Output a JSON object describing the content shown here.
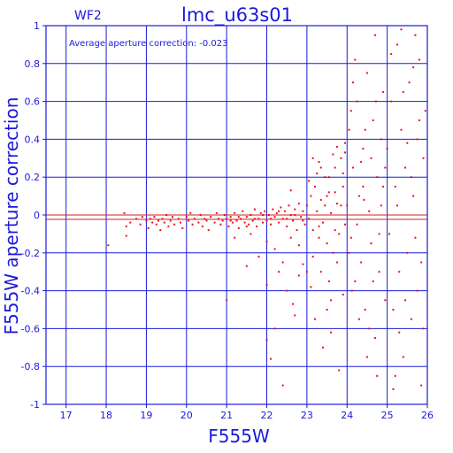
{
  "chart_data": {
    "type": "scatter",
    "panel_label": "WF2",
    "title": "lmc_u63s01",
    "xlabel": "F555W",
    "ylabel": "F555W aperture correction",
    "annotation": "Average aperture correction: -0.023",
    "xlim": [
      16.5,
      26
    ],
    "ylim": [
      -1,
      1
    ],
    "xticks": [
      17,
      18,
      19,
      20,
      21,
      22,
      23,
      24,
      25,
      26
    ],
    "yticks": [
      -1,
      -0.8,
      -0.6,
      -0.4,
      -0.2,
      0,
      0.2,
      0.4,
      0.6,
      0.8,
      1
    ],
    "ytick_labels": [
      "-1",
      "-0.8",
      "-0.6",
      "-0.4",
      "-0.2",
      "0",
      "0.2",
      "0.4",
      "0.6",
      "0.8",
      "1"
    ],
    "grid": true,
    "reference_lines": [
      -0.023,
      0
    ],
    "colors": {
      "axes": "#1a1adb",
      "points": "#e8101a",
      "reference": "#cc2222"
    },
    "series": [
      {
        "points": [
          [
            18.05,
            -0.16
          ],
          [
            18.45,
            0.01
          ],
          [
            18.5,
            -0.06
          ],
          [
            18.5,
            -0.11
          ],
          [
            18.6,
            -0.04
          ],
          [
            18.75,
            -0.02
          ],
          [
            18.85,
            -0.05
          ],
          [
            18.9,
            -0.01
          ],
          [
            19.0,
            -0.03
          ],
          [
            19.05,
            -0.07
          ],
          [
            19.1,
            -0.02
          ],
          [
            19.15,
            -0.04
          ],
          [
            19.2,
            -0.01
          ],
          [
            19.25,
            -0.05
          ],
          [
            19.3,
            -0.03
          ],
          [
            19.35,
            -0.08
          ],
          [
            19.4,
            -0.02
          ],
          [
            19.45,
            -0.04
          ],
          [
            19.5,
            0.0
          ],
          [
            19.55,
            -0.06
          ],
          [
            19.6,
            -0.03
          ],
          [
            19.65,
            -0.01
          ],
          [
            19.7,
            -0.05
          ],
          [
            19.8,
            -0.02
          ],
          [
            19.85,
            -0.04
          ],
          [
            19.9,
            -0.07
          ],
          [
            20.0,
            -0.01
          ],
          [
            20.05,
            -0.03
          ],
          [
            20.1,
            0.01
          ],
          [
            20.15,
            -0.05
          ],
          [
            20.2,
            -0.02
          ],
          [
            20.3,
            -0.04
          ],
          [
            20.35,
            0.0
          ],
          [
            20.4,
            -0.06
          ],
          [
            20.45,
            -0.02
          ],
          [
            20.5,
            -0.03
          ],
          [
            20.55,
            -0.08
          ],
          [
            20.6,
            -0.01
          ],
          [
            20.7,
            -0.04
          ],
          [
            20.75,
            0.01
          ],
          [
            20.8,
            -0.02
          ],
          [
            20.85,
            -0.05
          ],
          [
            20.9,
            -0.03
          ],
          [
            20.95,
            0.0
          ],
          [
            21.0,
            -0.02
          ],
          [
            21.05,
            -0.06
          ],
          [
            21.1,
            -0.01
          ],
          [
            21.15,
            -0.04
          ],
          [
            21.2,
            0.01
          ],
          [
            21.25,
            -0.03
          ],
          [
            21.3,
            -0.07
          ],
          [
            21.35,
            -0.02
          ],
          [
            21.4,
            0.02
          ],
          [
            21.45,
            -0.04
          ],
          [
            21.5,
            -0.01
          ],
          [
            21.55,
            -0.05
          ],
          [
            21.6,
            0.0
          ],
          [
            21.65,
            -0.03
          ],
          [
            21.7,
            0.03
          ],
          [
            21.75,
            -0.06
          ],
          [
            21.8,
            -0.02
          ],
          [
            21.85,
            0.01
          ],
          [
            21.9,
            -0.04
          ],
          [
            21.95,
            0.02
          ],
          [
            22.0,
            -0.03
          ],
          [
            22.05,
            0.0
          ],
          [
            22.1,
            -0.05
          ],
          [
            22.15,
            0.03
          ],
          [
            22.2,
            -0.01
          ],
          [
            22.25,
            0.01
          ],
          [
            22.3,
            -0.04
          ],
          [
            22.35,
            0.04
          ],
          [
            22.4,
            -0.02
          ],
          [
            22.45,
            0.02
          ],
          [
            22.5,
            -0.06
          ],
          [
            22.55,
            0.05
          ],
          [
            22.6,
            0.0
          ],
          [
            22.65,
            -0.03
          ],
          [
            22.7,
            0.03
          ],
          [
            22.75,
            -0.08
          ],
          [
            22.8,
            0.06
          ],
          [
            22.85,
            -0.01
          ],
          [
            22.9,
            0.02
          ],
          [
            22.95,
            -0.05
          ],
          [
            21.1,
            -0.03
          ],
          [
            21.3,
            -0.01
          ],
          [
            21.5,
            -0.06
          ],
          [
            21.7,
            -0.02
          ],
          [
            21.9,
            0.0
          ],
          [
            22.1,
            -0.02
          ],
          [
            22.3,
            0.02
          ],
          [
            22.5,
            -0.02
          ],
          [
            22.7,
            0.0
          ],
          [
            22.9,
            -0.03
          ],
          [
            21.2,
            -0.12
          ],
          [
            21.6,
            -0.1
          ],
          [
            22.0,
            -0.14
          ],
          [
            22.2,
            -0.18
          ],
          [
            22.4,
            -0.25
          ],
          [
            22.6,
            -0.12
          ],
          [
            21.8,
            -0.22
          ],
          [
            22.8,
            -0.16
          ],
          [
            21.0,
            -0.45
          ],
          [
            21.5,
            -0.27
          ],
          [
            22.0,
            -0.37
          ],
          [
            22.2,
            -0.6
          ],
          [
            22.3,
            -0.3
          ],
          [
            22.5,
            -0.4
          ],
          [
            22.7,
            -0.53
          ],
          [
            22.8,
            -0.32
          ],
          [
            22.0,
            -0.66
          ],
          [
            22.4,
            -0.9
          ],
          [
            22.1,
            -0.76
          ],
          [
            22.6,
            0.13
          ],
          [
            22.9,
            -0.26
          ],
          [
            22.65,
            -0.47
          ],
          [
            23.0,
            0.05
          ],
          [
            23.05,
            -0.02
          ],
          [
            23.1,
            0.1
          ],
          [
            23.15,
            -0.08
          ],
          [
            23.2,
            0.15
          ],
          [
            23.25,
            0.02
          ],
          [
            23.3,
            -0.12
          ],
          [
            23.35,
            0.08
          ],
          [
            23.4,
            -0.04
          ],
          [
            23.45,
            0.2
          ],
          [
            23.5,
            -0.15
          ],
          [
            23.55,
            0.12
          ],
          [
            23.6,
            0.01
          ],
          [
            23.65,
            -0.2
          ],
          [
            23.7,
            0.25
          ],
          [
            23.75,
            0.06
          ],
          [
            23.8,
            -0.1
          ],
          [
            23.85,
            0.3
          ],
          [
            23.9,
            0.15
          ],
          [
            23.95,
            -0.05
          ],
          [
            23.05,
            0.18
          ],
          [
            23.15,
            -0.22
          ],
          [
            23.25,
            0.22
          ],
          [
            23.35,
            -0.3
          ],
          [
            23.45,
            0.05
          ],
          [
            23.55,
            -0.35
          ],
          [
            23.65,
            0.32
          ],
          [
            23.75,
            -0.25
          ],
          [
            23.85,
            0.05
          ],
          [
            23.95,
            0.38
          ],
          [
            23.1,
            -0.38
          ],
          [
            23.3,
            0.28
          ],
          [
            23.5,
            -0.5
          ],
          [
            23.7,
            0.12
          ],
          [
            23.9,
            -0.42
          ],
          [
            23.2,
            -0.55
          ],
          [
            23.4,
            -0.7
          ],
          [
            23.6,
            -0.62
          ],
          [
            23.8,
            -0.82
          ],
          [
            23.0,
            -0.3
          ],
          [
            23.15,
            0.3
          ],
          [
            23.35,
            0.25
          ],
          [
            23.55,
            0.2
          ],
          [
            23.75,
            0.36
          ],
          [
            23.95,
            0.33
          ],
          [
            23.6,
            -0.45
          ],
          [
            23.3,
            -0.06
          ],
          [
            23.5,
            0.1
          ],
          [
            23.7,
            -0.08
          ],
          [
            23.9,
            0.22
          ],
          [
            24.0,
            0.05
          ],
          [
            24.05,
            0.45
          ],
          [
            24.1,
            -0.12
          ],
          [
            24.15,
            0.25
          ],
          [
            24.2,
            -0.35
          ],
          [
            24.25,
            0.6
          ],
          [
            24.3,
            0.1
          ],
          [
            24.35,
            -0.25
          ],
          [
            24.4,
            0.35
          ],
          [
            24.45,
            -0.5
          ],
          [
            24.5,
            0.75
          ],
          [
            24.55,
            0.02
          ],
          [
            24.6,
            -0.15
          ],
          [
            24.65,
            0.5
          ],
          [
            24.7,
            -0.65
          ],
          [
            24.75,
            0.2
          ],
          [
            24.8,
            -0.3
          ],
          [
            24.85,
            0.4
          ],
          [
            24.9,
            0.15
          ],
          [
            24.95,
            -0.45
          ],
          [
            24.1,
            0.55
          ],
          [
            24.2,
            0.82
          ],
          [
            24.3,
            -0.55
          ],
          [
            24.4,
            0.15
          ],
          [
            24.5,
            -0.75
          ],
          [
            24.6,
            0.3
          ],
          [
            24.7,
            0.95
          ],
          [
            24.8,
            -0.1
          ],
          [
            24.9,
            0.65
          ],
          [
            24.05,
            -0.2
          ],
          [
            24.25,
            -0.05
          ],
          [
            24.45,
            0.45
          ],
          [
            24.65,
            -0.35
          ],
          [
            24.85,
            0.05
          ],
          [
            24.15,
            0.7
          ],
          [
            24.35,
            0.28
          ],
          [
            24.55,
            -0.6
          ],
          [
            24.75,
            -0.85
          ],
          [
            24.95,
            0.25
          ],
          [
            24.12,
            -0.4
          ],
          [
            24.42,
            0.08
          ],
          [
            24.72,
            0.6
          ],
          [
            25.0,
            0.35
          ],
          [
            25.05,
            -0.1
          ],
          [
            25.1,
            0.6
          ],
          [
            25.15,
            -0.5
          ],
          [
            25.2,
            0.15
          ],
          [
            25.25,
            0.9
          ],
          [
            25.3,
            -0.3
          ],
          [
            25.35,
            0.45
          ],
          [
            25.4,
            -0.75
          ],
          [
            25.45,
            0.25
          ],
          [
            25.5,
            -0.2
          ],
          [
            25.55,
            0.7
          ],
          [
            25.6,
            -0.55
          ],
          [
            25.65,
            0.1
          ],
          [
            25.7,
            0.95
          ],
          [
            25.75,
            -0.4
          ],
          [
            25.8,
            0.5
          ],
          [
            25.85,
            -0.9
          ],
          [
            25.9,
            0.3
          ],
          [
            25.95,
            0.55
          ],
          [
            25.1,
            0.85
          ],
          [
            25.3,
            -0.62
          ],
          [
            25.5,
            0.38
          ],
          [
            25.7,
            -0.12
          ],
          [
            25.9,
            -0.6
          ],
          [
            25.2,
            -0.85
          ],
          [
            25.4,
            0.65
          ],
          [
            25.6,
            0.2
          ],
          [
            25.8,
            0.82
          ],
          [
            25.25,
            0.05
          ],
          [
            25.45,
            -0.45
          ],
          [
            25.65,
            0.78
          ],
          [
            25.85,
            -0.25
          ],
          [
            25.35,
            0.98
          ],
          [
            25.75,
            0.4
          ],
          [
            25.15,
            -0.92
          ]
        ]
      }
    ]
  }
}
